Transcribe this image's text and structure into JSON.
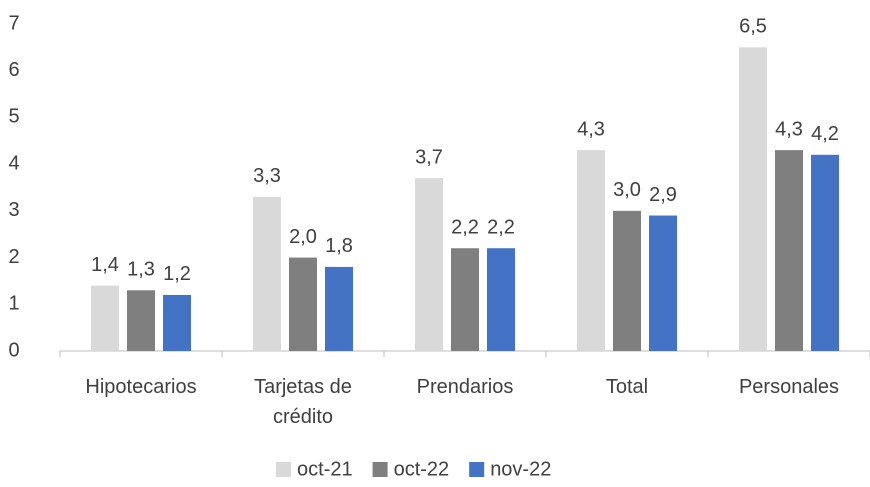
{
  "chart_data": {
    "type": "bar",
    "categories": [
      "Hipotecarios",
      "Tarjetas de crédito",
      "Prendarios",
      "Total",
      "Personales"
    ],
    "series": [
      {
        "name": "oct-21",
        "color": "#d9d9d9",
        "values": [
          1.4,
          3.3,
          3.7,
          4.3,
          6.5
        ],
        "value_labels": [
          "1,4",
          "3,3",
          "3,7",
          "4,3",
          "6,5"
        ]
      },
      {
        "name": "oct-22",
        "color": "#7f7f7f",
        "values": [
          1.3,
          2.0,
          2.2,
          3.0,
          4.3
        ],
        "value_labels": [
          "1,3",
          "2,0",
          "2,2",
          "3,0",
          "4,3"
        ]
      },
      {
        "name": "nov-22",
        "color": "#4472c4",
        "values": [
          1.2,
          1.8,
          2.2,
          2.9,
          4.2
        ],
        "value_labels": [
          "1,2",
          "1,8",
          "2,2",
          "2,9",
          "4,2"
        ]
      }
    ],
    "ylim": [
      0,
      7
    ],
    "yticks": [
      0,
      1,
      2,
      3,
      4,
      5,
      6,
      7
    ],
    "grid": false,
    "legend": "bottom"
  }
}
